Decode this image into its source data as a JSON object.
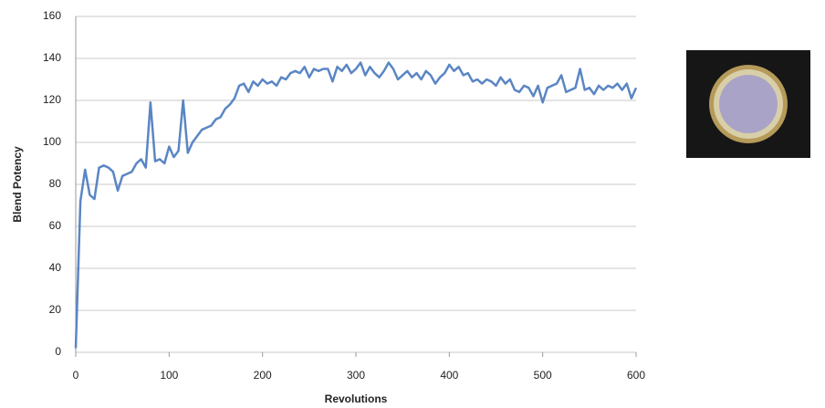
{
  "chart_data": {
    "type": "line",
    "x_label": "Revolutions",
    "y_label": "Blend Potency",
    "xlim": [
      0,
      600
    ],
    "xticks": [
      0,
      100,
      200,
      300,
      400,
      500,
      600
    ],
    "ylim": [
      0,
      160
    ],
    "yticks": [
      0,
      20,
      40,
      60,
      80,
      100,
      120,
      140,
      160
    ],
    "grid": true,
    "x": [
      0,
      5,
      10,
      15,
      20,
      25,
      30,
      35,
      40,
      45,
      50,
      55,
      60,
      65,
      70,
      75,
      80,
      85,
      90,
      95,
      100,
      105,
      110,
      115,
      120,
      125,
      130,
      135,
      140,
      145,
      150,
      155,
      160,
      165,
      170,
      175,
      180,
      185,
      190,
      195,
      200,
      205,
      210,
      215,
      220,
      225,
      230,
      235,
      240,
      245,
      250,
      255,
      260,
      265,
      270,
      275,
      280,
      285,
      290,
      295,
      300,
      305,
      310,
      315,
      320,
      325,
      330,
      335,
      340,
      345,
      350,
      355,
      360,
      365,
      370,
      375,
      380,
      385,
      390,
      395,
      400,
      405,
      410,
      415,
      420,
      425,
      430,
      435,
      440,
      445,
      450,
      455,
      460,
      465,
      470,
      475,
      480,
      485,
      490,
      495,
      500,
      505,
      510,
      515,
      520,
      525,
      530,
      535,
      540,
      545,
      550,
      555,
      560,
      565,
      570,
      575,
      580,
      585,
      590,
      595,
      600
    ],
    "series": [
      {
        "color": "#5a86c4",
        "values": [
          2,
          72,
          87,
          75,
          73,
          88,
          89,
          88,
          86,
          77,
          84,
          85,
          86,
          90,
          92,
          88,
          119,
          91,
          92,
          90,
          98,
          93,
          96,
          120,
          95,
          100,
          103,
          106,
          107,
          108,
          111,
          112,
          116,
          118,
          121,
          127,
          128,
          124,
          129,
          127,
          130,
          128,
          129,
          127,
          131,
          130,
          133,
          134,
          133,
          136,
          131,
          135,
          134,
          135,
          135,
          129,
          136,
          134,
          137,
          133,
          135,
          138,
          132,
          136,
          133,
          131,
          134,
          138,
          135,
          130,
          132,
          134,
          131,
          133,
          130,
          134,
          132,
          128,
          131,
          133,
          137,
          134,
          136,
          132,
          133,
          129,
          130,
          128,
          130,
          129,
          127,
          131,
          128,
          130,
          125,
          124,
          127,
          126,
          122,
          127,
          119,
          126,
          127,
          128,
          132,
          124,
          125,
          126,
          135,
          125,
          126,
          123,
          127,
          125,
          127,
          126,
          128,
          125,
          128,
          121,
          126
        ]
      }
    ]
  }
}
